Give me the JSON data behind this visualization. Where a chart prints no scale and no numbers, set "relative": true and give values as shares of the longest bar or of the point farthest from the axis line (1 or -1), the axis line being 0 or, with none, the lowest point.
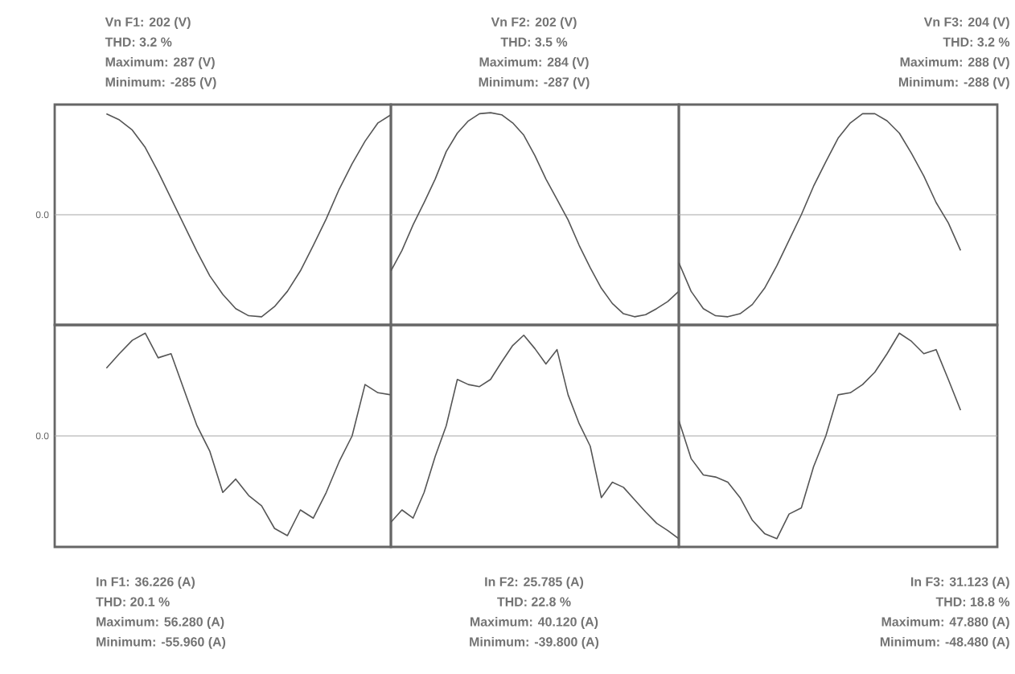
{
  "chart_data": [
    {
      "type": "line",
      "relative": true,
      "color": "#555555",
      "categories": [
        null,
        null,
        null,
        null,
        null,
        null,
        null,
        null,
        null,
        null,
        null,
        null,
        null,
        null,
        null,
        null,
        null,
        null,
        null,
        null,
        null,
        null,
        null,
        null,
        null,
        null,
        null
      ],
      "values": [
        null,
        null,
        null,
        null,
        0.99,
        0.93,
        0.83,
        0.66,
        0.42,
        0.16,
        -0.1,
        -0.36,
        -0.6,
        -0.78,
        -0.92,
        -0.99,
        -1.0,
        -0.9,
        -0.75,
        -0.55,
        -0.3,
        -0.04,
        0.25,
        0.5,
        0.72,
        0.9,
        0.98
      ],
      "ref_lines": [
        {
          "axis": "y",
          "value": 0,
          "label": "0.0"
        }
      ],
      "annotations": [
        "Vn F1: 202 (V)",
        "THD: 3.2 %",
        "Maximum: 287 (V)",
        "Minimum: -285 (V)"
      ]
    },
    {
      "type": "line",
      "relative": true,
      "color": "#555555",
      "categories": [
        null,
        null,
        null,
        null,
        null,
        null,
        null,
        null,
        null,
        null,
        null,
        null,
        null,
        null,
        null,
        null,
        null,
        null,
        null,
        null,
        null,
        null,
        null,
        null,
        null,
        null,
        null
      ],
      "values": [
        -0.55,
        -0.35,
        -0.1,
        0.12,
        0.35,
        0.62,
        0.8,
        0.92,
        0.99,
        1.0,
        0.98,
        0.9,
        0.78,
        0.58,
        0.35,
        0.15,
        -0.05,
        -0.3,
        -0.52,
        -0.72,
        -0.87,
        -0.97,
        -1.0,
        -0.98,
        -0.92,
        -0.85,
        -0.75
      ],
      "ref_lines": [
        {
          "axis": "y",
          "value": 0
        }
      ],
      "annotations": [
        "Vn F2: 202 (V)",
        "THD: 3.5 %",
        "Maximum: 284 (V)",
        "Minimum: -287 (V)"
      ]
    },
    {
      "type": "line",
      "relative": true,
      "color": "#555555",
      "categories": [
        null,
        null,
        null,
        null,
        null,
        null,
        null,
        null,
        null,
        null,
        null,
        null,
        null,
        null,
        null,
        null,
        null,
        null,
        null,
        null,
        null,
        null,
        null,
        null,
        null,
        null,
        null
      ],
      "values": [
        -0.47,
        -0.75,
        -0.92,
        -0.99,
        -1.0,
        -0.97,
        -0.88,
        -0.72,
        -0.5,
        -0.25,
        0.0,
        0.28,
        0.52,
        0.75,
        0.9,
        0.99,
        0.99,
        0.92,
        0.8,
        0.6,
        0.38,
        0.12,
        -0.08,
        -0.35,
        null,
        null,
        null
      ],
      "ref_lines": [
        {
          "axis": "y",
          "value": 0
        }
      ],
      "annotations": [
        "Vn F3: 204 (V)",
        "THD: 3.2 %",
        "Maximum: 288 (V)",
        "Minimum: -288 (V)"
      ]
    },
    {
      "type": "line",
      "relative": true,
      "color": "#555555",
      "categories": [
        null,
        null,
        null,
        null,
        null,
        null,
        null,
        null,
        null,
        null,
        null,
        null,
        null,
        null,
        null,
        null,
        null,
        null,
        null,
        null,
        null,
        null,
        null,
        null,
        null,
        null,
        null
      ],
      "values": [
        null,
        null,
        null,
        null,
        0.66,
        0.8,
        0.93,
        1.0,
        0.76,
        0.8,
        0.45,
        0.1,
        -0.15,
        -0.55,
        -0.42,
        -0.58,
        -0.68,
        -0.9,
        -0.97,
        -0.72,
        -0.8,
        -0.55,
        -0.25,
        0.0,
        0.5,
        0.42,
        0.4
      ],
      "ref_lines": [
        {
          "axis": "y",
          "value": 0,
          "label": "0.0"
        }
      ],
      "annotations": [
        "In F1: 36.226 (A)",
        "THD: 20.1 %",
        "Maximum: 56.280 (A)",
        "Minimum: -55.960 (A)"
      ]
    },
    {
      "type": "line",
      "relative": true,
      "color": "#555555",
      "categories": [
        null,
        null,
        null,
        null,
        null,
        null,
        null,
        null,
        null,
        null,
        null,
        null,
        null,
        null,
        null,
        null,
        null,
        null,
        null,
        null,
        null,
        null,
        null,
        null,
        null,
        null,
        null
      ],
      "values": [
        -0.84,
        -0.72,
        -0.8,
        -0.55,
        -0.2,
        0.1,
        0.55,
        0.5,
        0.48,
        0.55,
        0.72,
        0.88,
        0.98,
        0.85,
        0.7,
        0.84,
        0.4,
        0.12,
        -0.1,
        -0.6,
        -0.45,
        -0.5,
        -0.62,
        -0.74,
        -0.85,
        -0.92,
        -1.0
      ],
      "ref_lines": [
        {
          "axis": "y",
          "value": 0
        }
      ],
      "annotations": [
        "In F2: 25.785 (A)",
        "THD: 22.8 %",
        "Maximum: 40.120 (A)",
        "Minimum: -39.800 (A)"
      ]
    },
    {
      "type": "line",
      "relative": true,
      "color": "#555555",
      "categories": [
        null,
        null,
        null,
        null,
        null,
        null,
        null,
        null,
        null,
        null,
        null,
        null,
        null,
        null,
        null,
        null,
        null,
        null,
        null,
        null,
        null,
        null,
        null,
        null,
        null,
        null,
        null
      ],
      "values": [
        0.15,
        -0.22,
        -0.38,
        -0.4,
        -0.45,
        -0.6,
        -0.82,
        -0.95,
        -1.0,
        -0.76,
        -0.7,
        -0.3,
        0.0,
        0.4,
        0.42,
        0.5,
        0.62,
        0.8,
        1.0,
        0.92,
        0.8,
        0.84,
        0.55,
        0.25,
        null,
        null,
        null
      ],
      "ref_lines": [
        {
          "axis": "y",
          "value": 0
        }
      ],
      "annotations": [
        "In F3: 31.123 (A)",
        "THD: 18.8 %",
        "Maximum: 47.880 (A)",
        "Minimum: -48.480 (A)"
      ]
    }
  ]
}
